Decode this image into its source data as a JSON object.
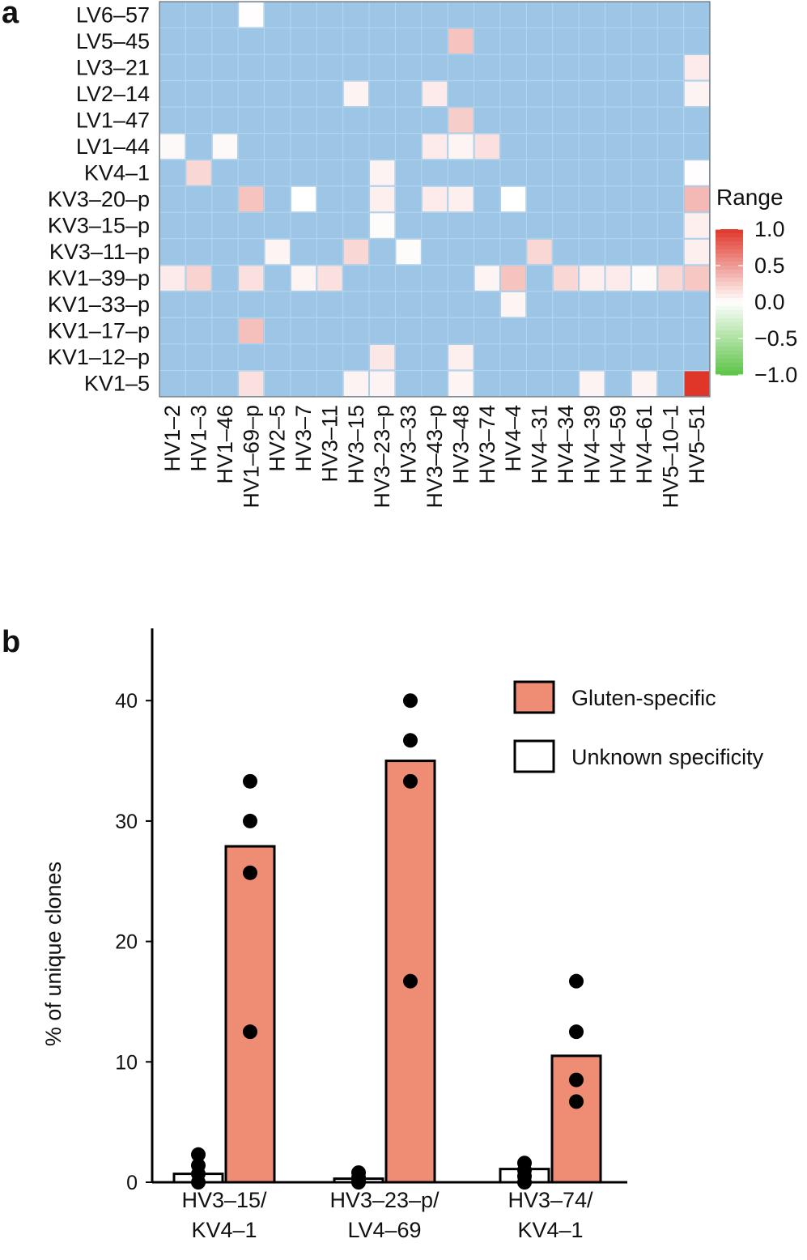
{
  "panel_a_label": "a",
  "panel_b_label": "b",
  "chart_data": [
    {
      "type": "heatmap",
      "title": "",
      "rows": [
        "LV6–57",
        "LV5–45",
        "LV3–21",
        "LV2–14",
        "LV1–47",
        "LV1–44",
        "KV4–1",
        "KV3–20–p",
        "KV3–15–p",
        "KV3–11–p",
        "KV1–39–p",
        "KV1–33–p",
        "KV1–17–p",
        "KV1–12–p",
        "KV1–5"
      ],
      "columns": [
        "HV1–2",
        "HV1–3",
        "HV1–46",
        "HV1–69–p",
        "HV2–5",
        "HV3–7",
        "HV3–11",
        "HV3–15",
        "HV3–23–p",
        "HV3–33",
        "HV3–43–p",
        "HV3–48",
        "HV3–74",
        "HV4–4",
        "HV4–31",
        "HV4–34",
        "HV4–39",
        "HV4–59",
        "HV4–61",
        "HV5–10–1",
        "HV5–51"
      ],
      "background_color": "#9dc6e6",
      "cells": [
        {
          "row": "LV6–57",
          "col": "HV1–69–p",
          "value": 0.01
        },
        {
          "row": "LV5–45",
          "col": "HV3–48",
          "value": 0.3
        },
        {
          "row": "LV3–21",
          "col": "HV5–51",
          "value": 0.1
        },
        {
          "row": "LV2–14",
          "col": "HV3–15",
          "value": 0.06
        },
        {
          "row": "LV2–14",
          "col": "HV3–43–p",
          "value": 0.1
        },
        {
          "row": "LV2–14",
          "col": "HV5–51",
          "value": 0.06
        },
        {
          "row": "LV1–47",
          "col": "HV3–48",
          "value": 0.25
        },
        {
          "row": "LV1–44",
          "col": "HV1–2",
          "value": 0.03
        },
        {
          "row": "LV1–44",
          "col": "HV1–46",
          "value": 0.03
        },
        {
          "row": "LV1–44",
          "col": "HV3–43–p",
          "value": 0.1
        },
        {
          "row": "LV1–44",
          "col": "HV3–48",
          "value": 0.05
        },
        {
          "row": "LV1–44",
          "col": "HV3–74",
          "value": 0.15
        },
        {
          "row": "KV4–1",
          "col": "HV1–3",
          "value": 0.2
        },
        {
          "row": "KV4–1",
          "col": "HV3–23–p",
          "value": 0.06
        },
        {
          "row": "KV4–1",
          "col": "HV5–51",
          "value": 0.01
        },
        {
          "row": "KV3–20–p",
          "col": "HV1–69–p",
          "value": 0.3
        },
        {
          "row": "KV3–20–p",
          "col": "HV3–7",
          "value": 0.0
        },
        {
          "row": "KV3–20–p",
          "col": "HV3–23–p",
          "value": 0.08
        },
        {
          "row": "KV3–20–p",
          "col": "HV3–43–p",
          "value": 0.1
        },
        {
          "row": "KV3–20–p",
          "col": "HV3–48",
          "value": 0.08
        },
        {
          "row": "KV3–20–p",
          "col": "HV4–4",
          "value": 0.0
        },
        {
          "row": "KV3–20–p",
          "col": "HV5–51",
          "value": 0.35
        },
        {
          "row": "KV3–15–p",
          "col": "HV3–23–p",
          "value": 0.02
        },
        {
          "row": "KV3–15–p",
          "col": "HV5–51",
          "value": 0.08
        },
        {
          "row": "KV3–11–p",
          "col": "HV2–5",
          "value": 0.05
        },
        {
          "row": "KV3–11–p",
          "col": "HV3–15",
          "value": 0.2
        },
        {
          "row": "KV3–11–p",
          "col": "HV3–33",
          "value": 0.02
        },
        {
          "row": "KV3–11–p",
          "col": "HV4–31",
          "value": 0.2
        },
        {
          "row": "KV3–11–p",
          "col": "HV5–51",
          "value": 0.08
        },
        {
          "row": "KV1–39–p",
          "col": "HV1–2",
          "value": 0.1
        },
        {
          "row": "KV1–39–p",
          "col": "HV1–3",
          "value": 0.22
        },
        {
          "row": "KV1–39–p",
          "col": "HV1–69–p",
          "value": 0.15
        },
        {
          "row": "KV1–39–p",
          "col": "HV3–7",
          "value": 0.05
        },
        {
          "row": "KV1–39–p",
          "col": "HV3–11",
          "value": 0.15
        },
        {
          "row": "KV1–39–p",
          "col": "HV3–74",
          "value": 0.05
        },
        {
          "row": "KV1–39–p",
          "col": "HV4–4",
          "value": 0.3
        },
        {
          "row": "KV1–39–p",
          "col": "HV4–34",
          "value": 0.2
        },
        {
          "row": "KV1–39–p",
          "col": "HV4–39",
          "value": 0.08
        },
        {
          "row": "KV1–39–p",
          "col": "HV4–59",
          "value": 0.1
        },
        {
          "row": "KV1–39–p",
          "col": "HV4–61",
          "value": 0.03
        },
        {
          "row": "KV1–39–p",
          "col": "HV5–10–1",
          "value": 0.2
        },
        {
          "row": "KV1–39–p",
          "col": "HV5–51",
          "value": 0.28
        },
        {
          "row": "KV1–33–p",
          "col": "HV4–4",
          "value": 0.05
        },
        {
          "row": "KV1–17–p",
          "col": "HV1–69–p",
          "value": 0.32
        },
        {
          "row": "KV1–12–p",
          "col": "HV3–23–p",
          "value": 0.12
        },
        {
          "row": "KV1–12–p",
          "col": "HV3–48",
          "value": 0.08
        },
        {
          "row": "KV1–5",
          "col": "HV1–69–p",
          "value": 0.15
        },
        {
          "row": "KV1–5",
          "col": "HV3–15",
          "value": 0.06
        },
        {
          "row": "KV1–5",
          "col": "HV3–23–p",
          "value": 0.06
        },
        {
          "row": "KV1–5",
          "col": "HV3–48",
          "value": 0.05
        },
        {
          "row": "KV1–5",
          "col": "HV4–39",
          "value": 0.06
        },
        {
          "row": "KV1–5",
          "col": "HV4–61",
          "value": 0.06
        },
        {
          "row": "KV1–5",
          "col": "HV5–51",
          "value": 1.0
        }
      ],
      "legend": {
        "title": "Range",
        "ticks": [
          "1.0",
          "0.5",
          "0.0",
          "−0.5",
          "−1.0"
        ],
        "tick_values": [
          1.0,
          0.5,
          0.0,
          -0.5,
          -1.0
        ],
        "min": -1.0,
        "max": 1.0,
        "high_color": "#e0362a",
        "mid_color": "#ffffff",
        "low_color": "#5cc447",
        "placement": "right"
      }
    },
    {
      "type": "bar",
      "title": "",
      "categories": [
        "HV3–15/\nKV4–1",
        "HV3–23–p/\nLV4–69",
        "HV3–74/\nKV4–1"
      ],
      "category_lines": [
        [
          "HV3–15/",
          "KV4–1"
        ],
        [
          "HV3–23–p/",
          "LV4–69"
        ],
        [
          "HV3–74/",
          "KV4–1"
        ]
      ],
      "ylabel": "% of unique clones",
      "xlabel": "",
      "ylim": [
        0,
        46
      ],
      "yticks": [
        0,
        10,
        20,
        30,
        40
      ],
      "series": [
        {
          "name": "Unknown specificity",
          "color": "#ffffff",
          "values": [
            0.7,
            0.3,
            1.1
          ],
          "points": [
            [
              0,
              0.7,
              1.4,
              2.3
            ],
            [
              0,
              0.1,
              0.4,
              0.8
            ],
            [
              0,
              0.5,
              1.0,
              1.6
            ]
          ]
        },
        {
          "name": "Gluten-specific",
          "color": "#ee8d73",
          "values": [
            27.9,
            35.0,
            10.5
          ],
          "points": [
            [
              12.5,
              25.7,
              30.0,
              33.3
            ],
            [
              16.7,
              33.3,
              36.7,
              40.0
            ],
            [
              6.7,
              8.5,
              12.5,
              16.7
            ]
          ]
        }
      ],
      "legend": {
        "entries": [
          "Gluten-specific",
          "Unknown specificity"
        ],
        "placement": "top-right"
      }
    }
  ]
}
